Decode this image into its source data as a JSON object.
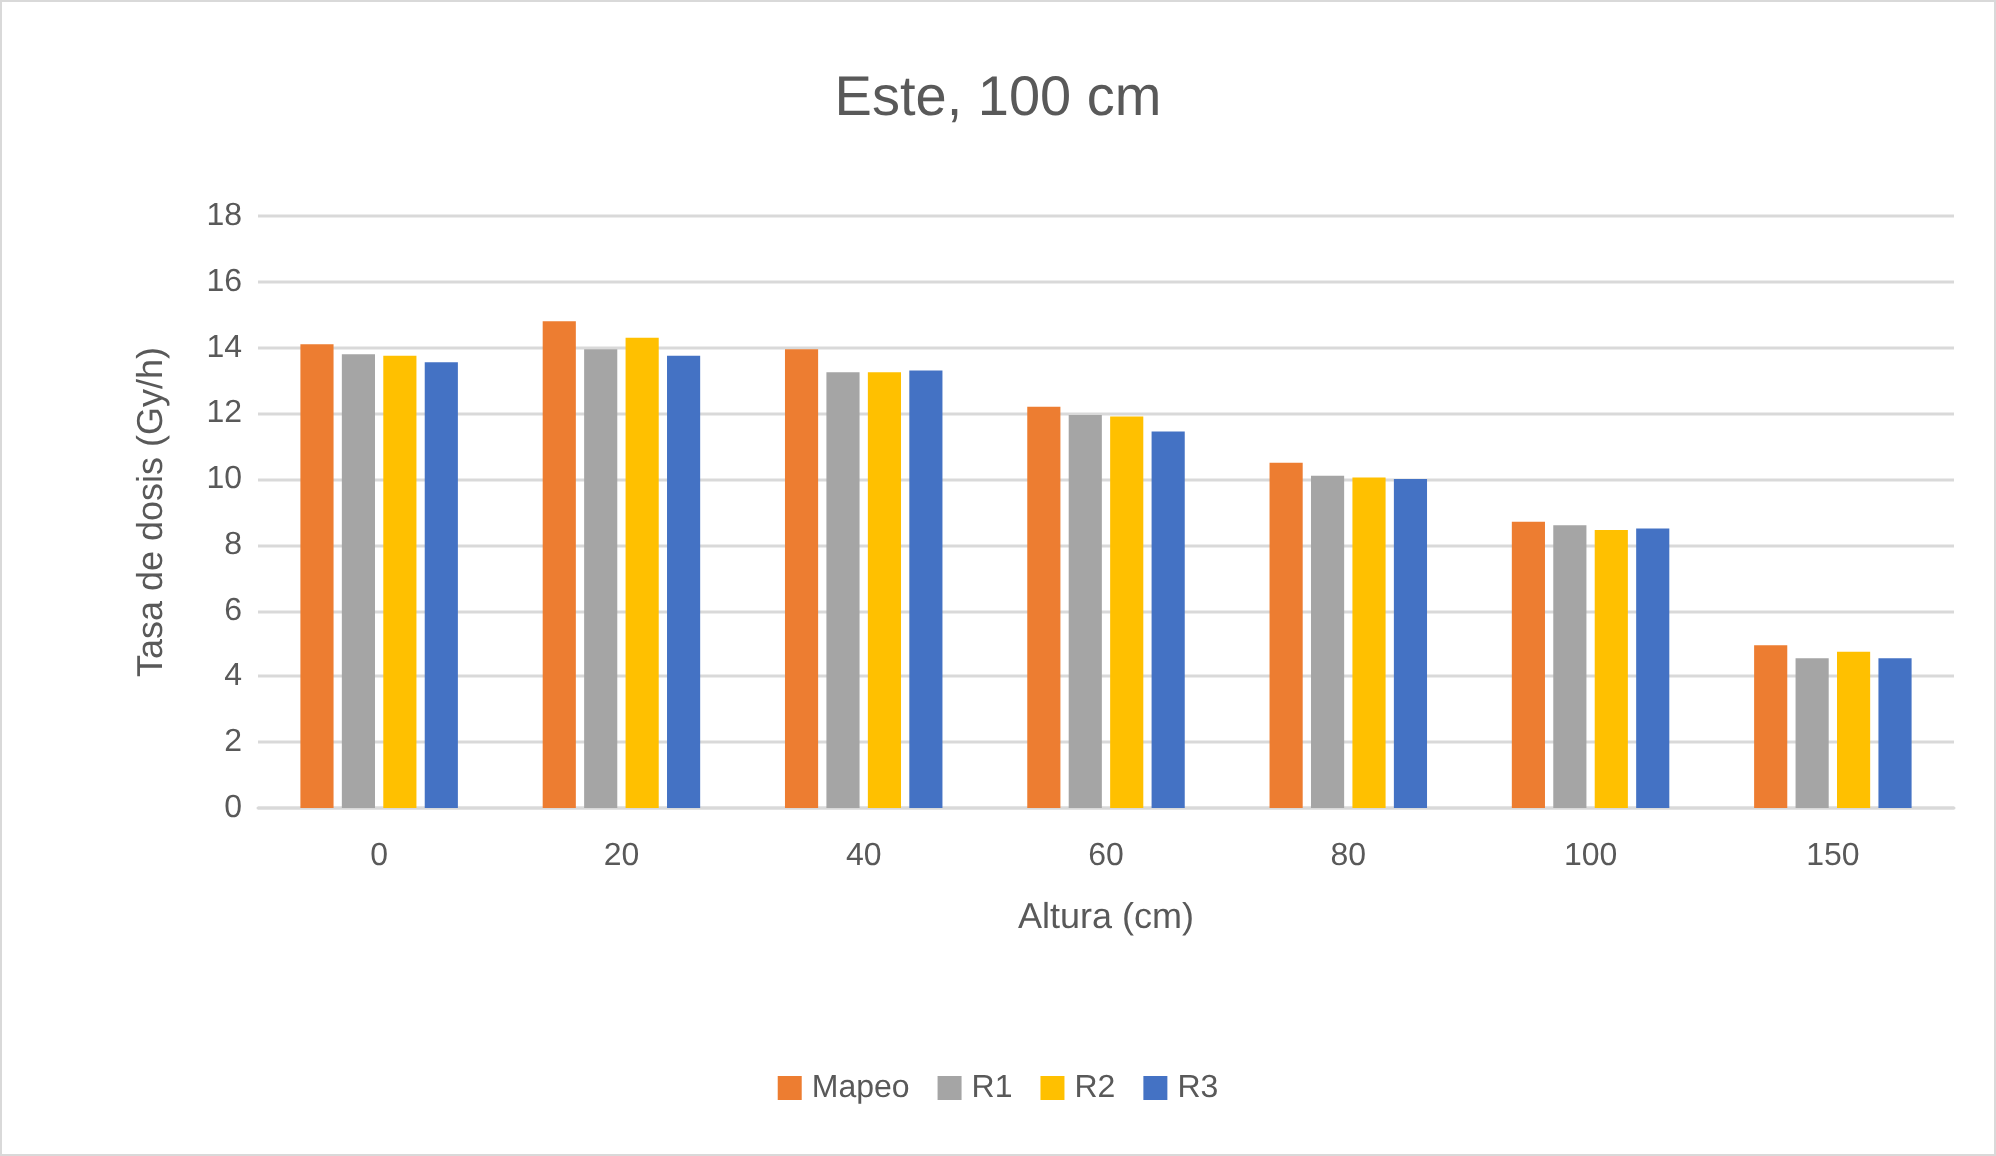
{
  "chart_data": {
    "type": "bar",
    "title": "Este, 100 cm",
    "xlabel": "Altura (cm)",
    "ylabel": "Tasa de dosis (Gy/h)",
    "categories": [
      "0",
      "20",
      "40",
      "60",
      "80",
      "100",
      "150"
    ],
    "series": [
      {
        "name": "Mapeo",
        "color": "#ed7d31",
        "values": [
          14.1,
          14.8,
          13.95,
          12.2,
          10.5,
          8.7,
          4.95
        ]
      },
      {
        "name": "R1",
        "color": "#a5a5a5",
        "values": [
          13.8,
          13.95,
          13.25,
          11.95,
          10.1,
          8.6,
          4.55
        ]
      },
      {
        "name": "R2",
        "color": "#ffc000",
        "values": [
          13.75,
          14.3,
          13.25,
          11.9,
          10.05,
          8.45,
          4.75
        ]
      },
      {
        "name": "R3",
        "color": "#4472c4",
        "values": [
          13.55,
          13.75,
          13.3,
          11.45,
          10.0,
          8.5,
          4.55
        ]
      }
    ],
    "ylim": [
      0,
      18
    ],
    "yticks": [
      0,
      2,
      4,
      6,
      8,
      10,
      12,
      14,
      16,
      18
    ],
    "grid": "y",
    "legend": "bottom"
  }
}
